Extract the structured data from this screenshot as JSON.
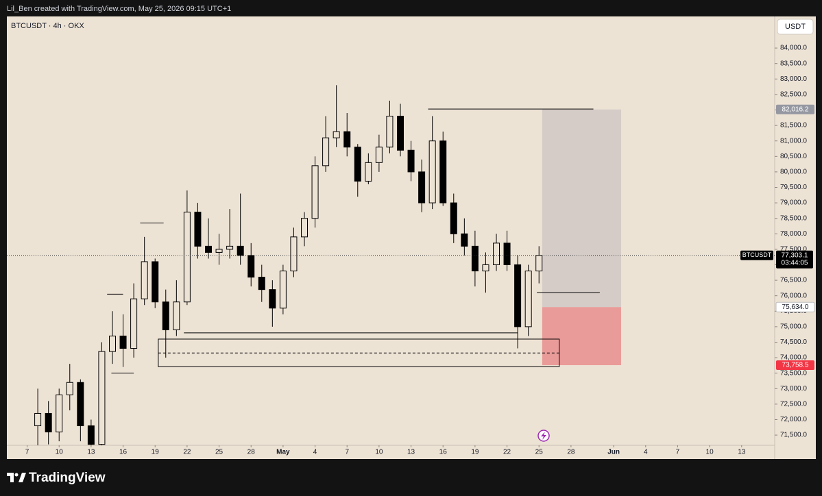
{
  "chart_data": {
    "type": "candlestick",
    "credit": "Lil_Ben created with TradingView.com, May 25, 2026 09:15 UTC+1",
    "title": "BTCUSDT · 4h · OKX",
    "brand": "TradingView",
    "currency": "USDT",
    "color": "#000000",
    "x": [
      8,
      9,
      10,
      11,
      12,
      13,
      14,
      15,
      16,
      17,
      18,
      19,
      20,
      21,
      22,
      23,
      24,
      25,
      26,
      27,
      28,
      29,
      30,
      31,
      32,
      33,
      34,
      35,
      36,
      37,
      38,
      39,
      40,
      41,
      42,
      43,
      44,
      45,
      46,
      47,
      48,
      49,
      50,
      51,
      52,
      53,
      54,
      55
    ],
    "open": [
      71800,
      72200,
      71600,
      72800,
      73200,
      71800,
      71200,
      74200,
      74700,
      74300,
      75900,
      77100,
      75800,
      74900,
      75800,
      78700,
      77600,
      77400,
      77500,
      77600,
      77300,
      76600,
      76200,
      75600,
      76800,
      77900,
      78500,
      80200,
      81100,
      81300,
      80800,
      79700,
      80300,
      80800,
      81800,
      80700,
      80000,
      79000,
      81000,
      79000,
      78000,
      77600,
      76800,
      77000,
      77700,
      77000,
      75000,
      76800
    ],
    "high": [
      73000,
      72600,
      73000,
      73800,
      73300,
      72000,
      74500,
      75500,
      75400,
      76400,
      77900,
      77200,
      76200,
      76500,
      79400,
      79000,
      78500,
      78000,
      78800,
      79300,
      77700,
      77000,
      76500,
      77000,
      78200,
      78700,
      80500,
      81800,
      82800,
      81900,
      80900,
      80600,
      81200,
      82300,
      82200,
      81000,
      80400,
      81800,
      81300,
      79300,
      78500,
      78100,
      77400,
      78000,
      78100,
      77300,
      77000,
      77600
    ],
    "low": [
      71000,
      71200,
      71300,
      72300,
      71300,
      70800,
      71000,
      73800,
      73700,
      74000,
      75700,
      75600,
      74000,
      74700,
      75700,
      77200,
      77200,
      77000,
      77200,
      77000,
      76300,
      75800,
      75000,
      75400,
      76600,
      77600,
      78200,
      80000,
      80800,
      80500,
      79200,
      79600,
      80000,
      80600,
      80500,
      79700,
      78700,
      78800,
      78900,
      77700,
      77300,
      76300,
      76100,
      76800,
      76800,
      74300,
      74700,
      76400
    ],
    "close": [
      72200,
      71600,
      72800,
      73200,
      71800,
      71200,
      74200,
      74700,
      74300,
      75900,
      77100,
      75800,
      74900,
      75800,
      78700,
      77600,
      77400,
      77500,
      77600,
      77300,
      76600,
      76200,
      75600,
      76800,
      77900,
      78500,
      80200,
      81100,
      81300,
      80800,
      79700,
      80300,
      80800,
      81800,
      80700,
      80000,
      79000,
      81000,
      79000,
      78000,
      77600,
      76800,
      77000,
      77700,
      77000,
      75000,
      76800,
      77303.1
    ],
    "xlim": [
      5.1,
      77.1
    ],
    "ylim": [
      71170,
      85020
    ],
    "xticks": [
      {
        "value": 7,
        "label": "7"
      },
      {
        "value": 10,
        "label": "10"
      },
      {
        "value": 13,
        "label": "13"
      },
      {
        "value": 16,
        "label": "16"
      },
      {
        "value": 19,
        "label": "19"
      },
      {
        "value": 22,
        "label": "22"
      },
      {
        "value": 25,
        "label": "25"
      },
      {
        "value": 28,
        "label": "28"
      },
      {
        "value": 31,
        "label": "May"
      },
      {
        "value": 34,
        "label": "4"
      },
      {
        "value": 37,
        "label": "7"
      },
      {
        "value": 40,
        "label": "10"
      },
      {
        "value": 43,
        "label": "13"
      },
      {
        "value": 46,
        "label": "16"
      },
      {
        "value": 49,
        "label": "19"
      },
      {
        "value": 52,
        "label": "22"
      },
      {
        "value": 55,
        "label": "25"
      },
      {
        "value": 58,
        "label": "28"
      },
      {
        "value": 62,
        "label": "Jun"
      },
      {
        "value": 65,
        "label": "4"
      },
      {
        "value": 68,
        "label": "7"
      },
      {
        "value": 71,
        "label": "10"
      },
      {
        "value": 74,
        "label": "13"
      }
    ],
    "yticks": [
      {
        "value": 71500,
        "label": "71,500.0"
      },
      {
        "value": 72000,
        "label": "72,000.0"
      },
      {
        "value": 72500,
        "label": "72,500.0"
      },
      {
        "value": 73000,
        "label": "73,000.0"
      },
      {
        "value": 73500,
        "label": "73,500.0"
      },
      {
        "value": 74000,
        "label": "74,000.0"
      },
      {
        "value": 74500,
        "label": "74,500.0"
      },
      {
        "value": 75000,
        "label": "75,000.0"
      },
      {
        "value": 75500,
        "label": "75,500.0"
      },
      {
        "value": 76000,
        "label": "76,000.0"
      },
      {
        "value": 76500,
        "label": "76,500.0"
      },
      {
        "value": 77000,
        "label": "77,000.0"
      },
      {
        "value": 77500,
        "label": "77,500.0"
      },
      {
        "value": 78000,
        "label": "78,000.0"
      },
      {
        "value": 78500,
        "label": "78,500.0"
      },
      {
        "value": 79000,
        "label": "79,000.0"
      },
      {
        "value": 79500,
        "label": "79,500.0"
      },
      {
        "value": 80000,
        "label": "80,000.0"
      },
      {
        "value": 80500,
        "label": "80,500.0"
      },
      {
        "value": 81000,
        "label": "81,000.0"
      },
      {
        "value": 81500,
        "label": "81,500.0"
      },
      {
        "value": 82000,
        "label": "82,000.0"
      },
      {
        "value": 82500,
        "label": "82,500.0"
      },
      {
        "value": 83000,
        "label": "83,000.0"
      },
      {
        "value": 83500,
        "label": "83,500.0"
      },
      {
        "value": 84000,
        "label": "84,000.0"
      }
    ],
    "last_price": {
      "value": 77303.1,
      "label": "77,303.1"
    },
    "symbol_tag": "BTCUSDT",
    "countdown": "03:44:05",
    "lines": [
      {
        "x": [
          14.5,
          16
        ],
        "y": 76050
      },
      {
        "x": [
          17.6,
          19.8
        ],
        "y": 78350
      },
      {
        "x": [
          14.9,
          17
        ],
        "y": 73500
      },
      {
        "x": [
          21.7,
          53
        ],
        "y": 74800
      },
      {
        "x": [
          44.6,
          60.1
        ],
        "y": 82030
      },
      {
        "x": [
          54.8,
          60.7
        ],
        "y": 76100
      }
    ],
    "zone": {
      "x": [
        19.3,
        56.9
      ],
      "y": [
        73710,
        74600
      ],
      "mid": 74150
    },
    "position": {
      "x": [
        55.3,
        62.7
      ],
      "target": {
        "value": 82016.2,
        "label": "82,016.2"
      },
      "entry": {
        "value": 75634.0,
        "label": "75,634.0"
      },
      "stop": {
        "value": 73758.5,
        "label": "73,758.5"
      }
    }
  }
}
